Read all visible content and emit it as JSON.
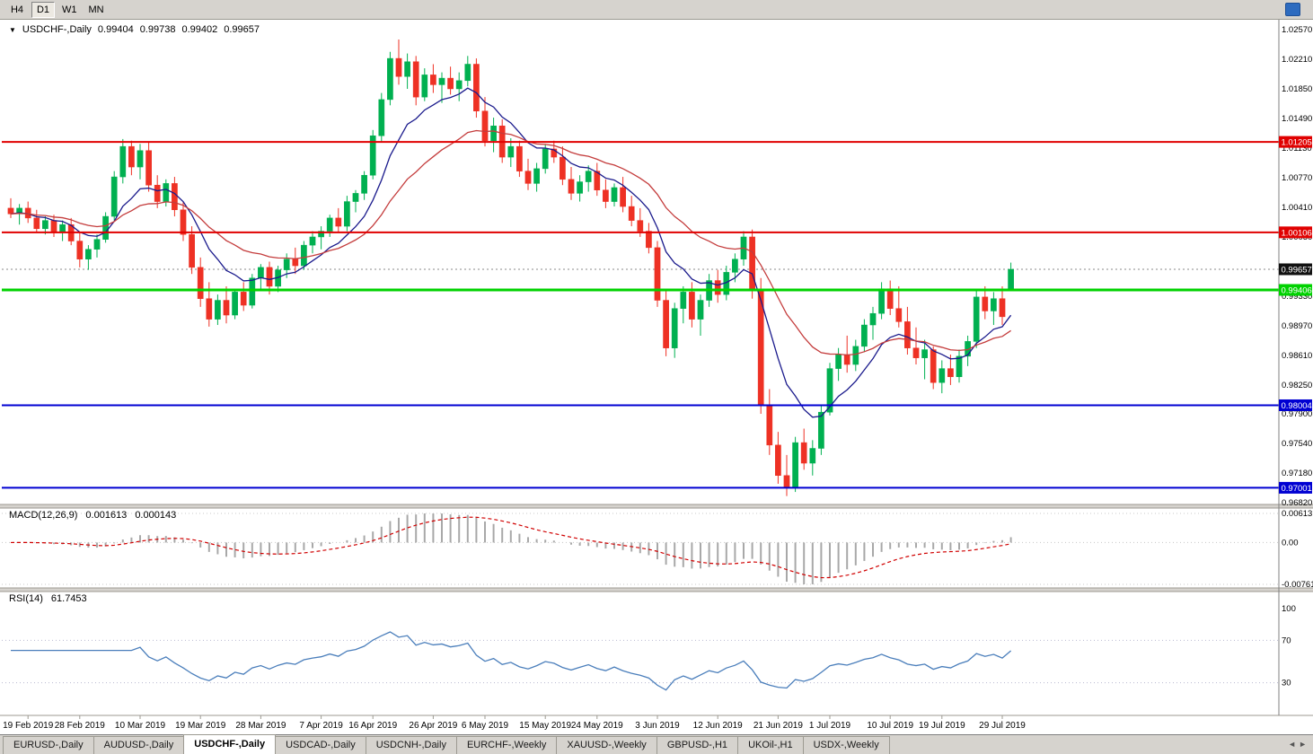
{
  "toolbar": {
    "timeframes": [
      {
        "label": "H4",
        "active": false
      },
      {
        "label": "D1",
        "active": true
      },
      {
        "label": "W1",
        "active": false
      },
      {
        "label": "MN",
        "active": false
      }
    ]
  },
  "header": {
    "dropdown_icon": "▼",
    "symbol": "USDCHF-,Daily",
    "open": "0.99404",
    "high": "0.99738",
    "low": "0.99402",
    "close": "0.99657"
  },
  "chart_data": {
    "type": "candlestick",
    "symbol": "USDCHF",
    "timeframe": "Daily",
    "price_axis": {
      "min": 0.9682,
      "max": 1.0257,
      "tick_labels": [
        "1.02570",
        "1.02210",
        "1.01850",
        "1.01490",
        "1.01130",
        "1.00770",
        "1.00410",
        "1.00050",
        "0.99690",
        "0.99330",
        "0.98970",
        "0.98610",
        "0.98250",
        "0.97900",
        "0.97540",
        "0.97180",
        "0.96820"
      ]
    },
    "hlines": [
      {
        "price": 1.01205,
        "label": "1.01205",
        "color": "#e00000",
        "width": 2
      },
      {
        "price": 1.00106,
        "label": "1.00106",
        "color": "#e00000",
        "width": 2
      },
      {
        "price": 0.99406,
        "label": "0.99406",
        "color": "#00d200",
        "width": 3
      },
      {
        "price": 0.98004,
        "label": "0.98004",
        "color": "#0000d2",
        "width": 2
      },
      {
        "price": 0.97001,
        "label": "0.97001",
        "color": "#0000d2",
        "width": 2
      }
    ],
    "current_price": {
      "price": 0.99657,
      "label": "0.99657",
      "bg": "#111111"
    },
    "date_labels": [
      {
        "text": "19 Feb 2019",
        "bar": 2
      },
      {
        "text": "28 Feb 2019",
        "bar": 8
      },
      {
        "text": "10 Mar 2019",
        "bar": 15
      },
      {
        "text": "19 Mar 2019",
        "bar": 22
      },
      {
        "text": "28 Mar 2019",
        "bar": 29
      },
      {
        "text": "7 Apr 2019",
        "bar": 36
      },
      {
        "text": "16 Apr 2019",
        "bar": 42
      },
      {
        "text": "26 Apr 2019",
        "bar": 49
      },
      {
        "text": "6 May 2019",
        "bar": 55
      },
      {
        "text": "15 May 2019",
        "bar": 62
      },
      {
        "text": "24 May 2019",
        "bar": 68
      },
      {
        "text": "3 Jun 2019",
        "bar": 75
      },
      {
        "text": "12 Jun 2019",
        "bar": 82
      },
      {
        "text": "21 Jun 2019",
        "bar": 89
      },
      {
        "text": "1 Jul 2019",
        "bar": 95
      },
      {
        "text": "10 Jul 2019",
        "bar": 102
      },
      {
        "text": "19 Jul 2019",
        "bar": 108
      },
      {
        "text": "29 Jul 2019",
        "bar": 115
      }
    ],
    "ma_fast_period": 9,
    "ma_slow_period": 22,
    "colors": {
      "up": "#00b050",
      "down": "#ee3124",
      "ma_fast": "#1a1a8c",
      "ma_slow": "#c43c3c",
      "rsi_line": "#4a7ebb",
      "macd_hist": "#a8a8a8",
      "macd_signal": "#d00000"
    },
    "candles": [
      [
        1.004,
        1.0052,
        1.0028,
        1.0033
      ],
      [
        1.0033,
        1.0045,
        1.002,
        1.004
      ],
      [
        1.004,
        1.0048,
        1.0022,
        1.0028
      ],
      [
        1.0028,
        1.0038,
        1.001,
        1.0015
      ],
      [
        1.0015,
        1.003,
        1.0008,
        1.0025
      ],
      [
        1.0025,
        1.0032,
        1.0005,
        1.001
      ],
      [
        1.001,
        1.0025,
        1.0,
        1.002
      ],
      [
        1.002,
        1.0028,
        0.9995,
        1.0
      ],
      [
        1.0,
        1.001,
        0.9968,
        0.9978
      ],
      [
        0.9978,
        0.9995,
        0.9965,
        0.999
      ],
      [
        0.999,
        1.0008,
        0.998,
        1.0002
      ],
      [
        1.0002,
        1.0035,
        0.9998,
        1.003
      ],
      [
        1.003,
        1.0085,
        1.0025,
        1.0078
      ],
      [
        1.0078,
        1.0124,
        1.007,
        1.0115
      ],
      [
        1.0115,
        1.0122,
        1.008,
        1.009
      ],
      [
        1.009,
        1.0118,
        1.0075,
        1.011
      ],
      [
        1.011,
        1.012,
        1.006,
        1.0068
      ],
      [
        1.0068,
        1.008,
        1.004,
        1.0048
      ],
      [
        1.0048,
        1.0075,
        1.0042,
        1.007
      ],
      [
        1.007,
        1.0078,
        1.003,
        1.0038
      ],
      [
        1.0038,
        1.0048,
        1.0,
        1.0008
      ],
      [
        1.0008,
        1.0018,
        0.996,
        0.9968
      ],
      [
        0.9968,
        0.998,
        0.992,
        0.993
      ],
      [
        0.993,
        0.995,
        0.9896,
        0.9905
      ],
      [
        0.9905,
        0.9935,
        0.9898,
        0.9928
      ],
      [
        0.9928,
        0.9945,
        0.99,
        0.991
      ],
      [
        0.991,
        0.9942,
        0.9905,
        0.9938
      ],
      [
        0.9938,
        0.995,
        0.9915,
        0.9922
      ],
      [
        0.9922,
        0.996,
        0.9918,
        0.9955
      ],
      [
        0.9955,
        0.9972,
        0.994,
        0.9968
      ],
      [
        0.9968,
        0.9975,
        0.9935,
        0.9945
      ],
      [
        0.9945,
        0.997,
        0.9938,
        0.9965
      ],
      [
        0.9965,
        0.9985,
        0.9955,
        0.9978
      ],
      [
        0.9978,
        0.9992,
        0.996,
        0.997
      ],
      [
        0.997,
        1.0,
        0.9965,
        0.9995
      ],
      [
        0.9995,
        1.0012,
        0.9985,
        1.0005
      ],
      [
        1.0005,
        1.0018,
        0.999,
        1.0012
      ],
      [
        1.0012,
        1.0032,
        1.0005,
        1.0028
      ],
      [
        1.0028,
        1.004,
        1.001,
        1.0018
      ],
      [
        1.0018,
        1.0055,
        1.0012,
        1.0048
      ],
      [
        1.0048,
        1.0062,
        1.0035,
        1.0058
      ],
      [
        1.0058,
        1.0085,
        1.005,
        1.008
      ],
      [
        1.008,
        1.0135,
        1.0075,
        1.0128
      ],
      [
        1.0128,
        1.018,
        1.012,
        1.0172
      ],
      [
        1.0172,
        1.023,
        1.0165,
        1.0222
      ],
      [
        1.0222,
        1.0245,
        1.019,
        1.02
      ],
      [
        1.02,
        1.0228,
        1.0185,
        1.0218
      ],
      [
        1.0218,
        1.0225,
        1.0165,
        1.0175
      ],
      [
        1.0175,
        1.021,
        1.017,
        1.0202
      ],
      [
        1.0202,
        1.0215,
        1.018,
        1.019
      ],
      [
        1.019,
        1.0205,
        1.0168,
        1.0198
      ],
      [
        1.0198,
        1.0212,
        1.0178,
        1.0185
      ],
      [
        1.0185,
        1.0205,
        1.017,
        1.0195
      ],
      [
        1.0195,
        1.0225,
        1.0188,
        1.0215
      ],
      [
        1.0215,
        1.0222,
        1.015,
        1.0158
      ],
      [
        1.0158,
        1.0175,
        1.0115,
        1.0122
      ],
      [
        1.0122,
        1.015,
        1.0108,
        1.014
      ],
      [
        1.014,
        1.0148,
        1.0095,
        1.0102
      ],
      [
        1.0102,
        1.0125,
        1.009,
        1.0115
      ],
      [
        1.0115,
        1.0122,
        1.0078,
        1.0085
      ],
      [
        1.0085,
        1.01,
        1.0062,
        1.007
      ],
      [
        1.007,
        1.0095,
        1.006,
        1.0088
      ],
      [
        1.0088,
        1.0118,
        1.0082,
        1.0112
      ],
      [
        1.0112,
        1.0122,
        1.0095,
        1.0102
      ],
      [
        1.0102,
        1.0115,
        1.0068,
        1.0075
      ],
      [
        1.0075,
        1.009,
        1.005,
        1.0058
      ],
      [
        1.0058,
        1.008,
        1.0048,
        1.0072
      ],
      [
        1.0072,
        1.0092,
        1.006,
        1.0085
      ],
      [
        1.0085,
        1.0095,
        1.0055,
        1.0062
      ],
      [
        1.0062,
        1.0075,
        1.004,
        1.0048
      ],
      [
        1.0048,
        1.007,
        1.0042,
        1.0065
      ],
      [
        1.0065,
        1.0078,
        1.0035,
        1.0042
      ],
      [
        1.0042,
        1.0055,
        1.0018,
        1.0025
      ],
      [
        1.0025,
        1.004,
        1.0005,
        1.0012
      ],
      [
        1.0012,
        1.0022,
        0.9985,
        0.9992
      ],
      [
        0.9992,
        1.0,
        0.992,
        0.9928
      ],
      [
        0.9928,
        0.994,
        0.986,
        0.987
      ],
      [
        0.987,
        0.9925,
        0.9858,
        0.9918
      ],
      [
        0.9918,
        0.9945,
        0.99,
        0.9938
      ],
      [
        0.9938,
        0.995,
        0.9895,
        0.9905
      ],
      [
        0.9905,
        0.9935,
        0.9885,
        0.9928
      ],
      [
        0.9928,
        0.996,
        0.992,
        0.9952
      ],
      [
        0.9952,
        0.9965,
        0.9925,
        0.9935
      ],
      [
        0.9935,
        0.997,
        0.9928,
        0.9962
      ],
      [
        0.9962,
        0.9985,
        0.995,
        0.9978
      ],
      [
        0.9978,
        1.0012,
        0.997,
        1.0005
      ],
      [
        1.0005,
        1.0014,
        0.993,
        0.994
      ],
      [
        0.994,
        0.9955,
        0.979,
        0.98
      ],
      [
        0.98,
        0.982,
        0.974,
        0.9752
      ],
      [
        0.9752,
        0.9768,
        0.9705,
        0.9715
      ],
      [
        0.9715,
        0.974,
        0.969,
        0.97
      ],
      [
        0.97,
        0.9762,
        0.9695,
        0.9755
      ],
      [
        0.9755,
        0.9772,
        0.9722,
        0.973
      ],
      [
        0.973,
        0.9758,
        0.9715,
        0.9748
      ],
      [
        0.9748,
        0.98,
        0.974,
        0.9792
      ],
      [
        0.9792,
        0.9852,
        0.9788,
        0.9845
      ],
      [
        0.9845,
        0.987,
        0.983,
        0.9862
      ],
      [
        0.9862,
        0.9885,
        0.984,
        0.985
      ],
      [
        0.985,
        0.988,
        0.9842,
        0.9872
      ],
      [
        0.9872,
        0.9905,
        0.9865,
        0.9898
      ],
      [
        0.9898,
        0.992,
        0.988,
        0.9912
      ],
      [
        0.9912,
        0.995,
        0.9905,
        0.9942
      ],
      [
        0.9942,
        0.9952,
        0.991,
        0.9918
      ],
      [
        0.9918,
        0.9945,
        0.9895,
        0.9902
      ],
      [
        0.9902,
        0.992,
        0.9862,
        0.987
      ],
      [
        0.987,
        0.9895,
        0.985,
        0.9858
      ],
      [
        0.9858,
        0.988,
        0.9832,
        0.9868
      ],
      [
        0.9868,
        0.9872,
        0.982,
        0.9828
      ],
      [
        0.9828,
        0.9855,
        0.9815,
        0.9845
      ],
      [
        0.9845,
        0.9862,
        0.9825,
        0.9835
      ],
      [
        0.9835,
        0.9868,
        0.9828,
        0.986
      ],
      [
        0.986,
        0.9885,
        0.9848,
        0.9878
      ],
      [
        0.9878,
        0.994,
        0.987,
        0.9932
      ],
      [
        0.9932,
        0.9945,
        0.9905,
        0.9915
      ],
      [
        0.9915,
        0.9938,
        0.9898,
        0.993
      ],
      [
        0.993,
        0.9945,
        0.9898,
        0.9908
      ],
      [
        0.99404,
        0.99738,
        0.99402,
        0.99657
      ]
    ]
  },
  "macd_panel": {
    "title": "MACD(12,26,9)",
    "value1": "0.001613",
    "value2": "0.000143",
    "axis_max": "0.00613",
    "axis_zero": "0.00",
    "axis_min": "-0.00761",
    "fast": 12,
    "slow": 26,
    "signal": 9
  },
  "rsi_panel": {
    "title": "RSI(14)",
    "value": "61.7453",
    "axis_top": "100",
    "axis_upper": "70",
    "axis_lower": "30",
    "levels": [
      70,
      30
    ],
    "period": 14
  },
  "tabs": {
    "active_index": 2,
    "scroll_left_icon": "◄",
    "scroll_right_icon": "►",
    "items": [
      "EURUSD-,Daily",
      "AUDUSD-,Daily",
      "USDCHF-,Daily",
      "USDCAD-,Daily",
      "USDCNH-,Daily",
      "EURCHF-,Weekly",
      "XAUUSD-,Weekly",
      "GBPUSD-,H1",
      "UKOil-,H1",
      "USDX-,Weekly"
    ]
  }
}
